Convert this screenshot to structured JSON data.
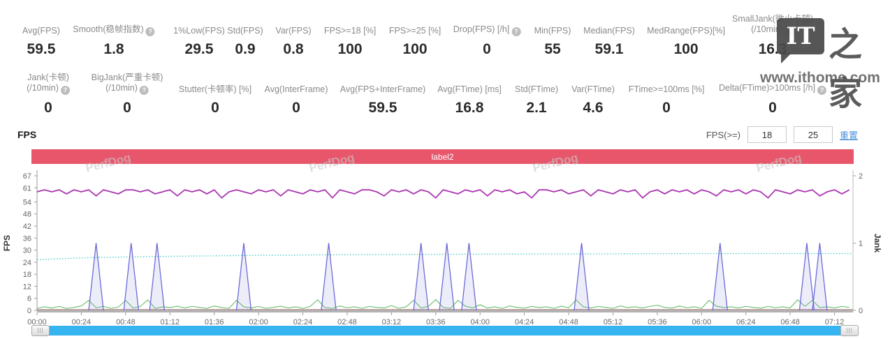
{
  "watermark": {
    "brand_text": "PerfDog",
    "site_text": "www.ithome.com",
    "logo_it": "IT",
    "logo_cn": "之家"
  },
  "stats_row1": [
    {
      "label": "Avg(FPS)",
      "value": "59.5",
      "help": false
    },
    {
      "label": "Smooth(稳帧指数)",
      "value": "1.8",
      "help": true
    },
    {
      "label": "1%Low(FPS)",
      "value": "29.5",
      "help": false
    },
    {
      "label": "Std(FPS)",
      "value": "0.9",
      "help": false
    },
    {
      "label": "Var(FPS)",
      "value": "0.8",
      "help": false
    },
    {
      "label": "FPS>=18 [%]",
      "value": "100",
      "help": false
    },
    {
      "label": "FPS>=25 [%]",
      "value": "100",
      "help": false
    },
    {
      "label": "Drop(FPS) [/h]",
      "value": "0",
      "help": true
    },
    {
      "label": "Min(FPS)",
      "value": "55",
      "help": false
    },
    {
      "label": "Median(FPS)",
      "value": "59.1",
      "help": false
    },
    {
      "label": "MedRange(FPS)[%]",
      "value": "100",
      "help": false
    },
    {
      "label": "SmallJank(微小卡顿)\n(/10min)",
      "value": "16.3",
      "help": true
    }
  ],
  "stats_row2": [
    {
      "label": "Jank(卡顿)\n(/10min)",
      "value": "0",
      "help": true
    },
    {
      "label": "BigJank(严重卡顿)\n(/10min)",
      "value": "0",
      "help": true
    },
    {
      "label": "Stutter(卡顿率) [%]",
      "value": "0",
      "help": false
    },
    {
      "label": "Avg(InterFrame)",
      "value": "0",
      "help": false
    },
    {
      "label": "Avg(FPS+InterFrame)",
      "value": "59.5",
      "help": false
    },
    {
      "label": "Avg(FTime) [ms]",
      "value": "16.8",
      "help": false
    },
    {
      "label": "Std(FTime)",
      "value": "2.1",
      "help": false
    },
    {
      "label": "Var(FTime)",
      "value": "4.6",
      "help": false
    },
    {
      "label": "FTime>=100ms [%]",
      "value": "0",
      "help": false
    },
    {
      "label": "Delta(FTime)>100ms [/h]",
      "value": "0",
      "help": true
    }
  ],
  "section": {
    "title": "FPS",
    "filter_label": "FPS(>=)",
    "filter_low": "18",
    "filter_high": "25",
    "reset_label": "重置"
  },
  "banner": {
    "text": "label2",
    "color": "#e8566b"
  },
  "colors": {
    "banner": "#e8566b",
    "link": "#4a90d9",
    "scrollbar": "#36b4f0",
    "fps_line": "#ab36b2",
    "avg_trend_line": "#41c7c3",
    "jank_spike_line": "#6b6bd8",
    "stutter_line": "#67bd69",
    "drop_line": "#e06666"
  },
  "chart_data": {
    "type": "line",
    "title": "label2",
    "x_axis": {
      "duration_s": 442,
      "tick_interval_s": 24,
      "ticks": [
        "00:00",
        "00:24",
        "00:48",
        "01:12",
        "01:36",
        "02:00",
        "02:24",
        "02:48",
        "03:12",
        "03:36",
        "04:00",
        "04:24",
        "04:48",
        "05:12",
        "05:36",
        "06:00",
        "06:24",
        "06:48",
        "07:12"
      ]
    },
    "y_left": {
      "label": "FPS",
      "min": 0,
      "max": 67,
      "ticks": [
        67,
        61,
        54,
        48,
        42,
        36,
        30,
        24,
        18,
        12,
        6,
        0
      ]
    },
    "y_right": {
      "label": "Jank",
      "min": 0,
      "max": 2,
      "ticks": [
        2,
        1,
        0
      ]
    },
    "legend": "off",
    "grid": "off",
    "series": [
      {
        "name": "Drop(FPS)",
        "axis": "left",
        "style": "dotted",
        "color": "#e06666",
        "width": 1.1,
        "points": [
          [
            0,
            0.4
          ],
          [
            442,
            0.4
          ]
        ]
      },
      {
        "name": "Stutter",
        "axis": "left",
        "style": "solid",
        "color": "#67bd69",
        "width": 1.1,
        "step_s": 4,
        "values": [
          1,
          1.8,
          1.2,
          2,
          1,
          1.5,
          2.2,
          5,
          1.3,
          2,
          1,
          1.6,
          5,
          1.2,
          2,
          5.2,
          1,
          1.8,
          1.4,
          2.1,
          1.2,
          2,
          1.5,
          1,
          2.2,
          1.4,
          1,
          5,
          1.8,
          1.2,
          2,
          1,
          1.5,
          2.1,
          1.2,
          1.8,
          1,
          2,
          5.3,
          1.4,
          1,
          2.2,
          1.3,
          1.8,
          1,
          2,
          1.5,
          1.2,
          2.4,
          1,
          1.8,
          5.1,
          1.2,
          2,
          5.4,
          1.5,
          1,
          5,
          2.1,
          1.3,
          2.8,
          1.2,
          1.8,
          1,
          2.2,
          1.5,
          1.1,
          2,
          1.4,
          1.8,
          1,
          2.1,
          1.3,
          5.2,
          1.8,
          1.2,
          2,
          1.5,
          1,
          2.2,
          1.4,
          1.8,
          1.2,
          2,
          2.6,
          1.5,
          1.1,
          2.2,
          1.3,
          1.8,
          1,
          5,
          2.1,
          1.4,
          1.8,
          1.2,
          2,
          1.5,
          1.1,
          2,
          1.3,
          1.8,
          1.2,
          5.3,
          2,
          5,
          1.4,
          1.8,
          1.2,
          2,
          1.5
        ]
      },
      {
        "name": "Avg trend",
        "axis": "left",
        "style": "dotted",
        "color": "#41c7c3",
        "width": 1.3,
        "points": [
          [
            0,
            25.3
          ],
          [
            30,
            26.3
          ],
          [
            60,
            26.8
          ],
          [
            90,
            27.1
          ],
          [
            120,
            27.4
          ],
          [
            150,
            27.6
          ],
          [
            180,
            27.8
          ],
          [
            210,
            27.9
          ],
          [
            270,
            28.1
          ],
          [
            330,
            28.2
          ],
          [
            390,
            28.3
          ],
          [
            442,
            28.3
          ]
        ]
      },
      {
        "name": "Jank events",
        "axis": "right",
        "style": "spike",
        "color": "#6b6bd8",
        "width": 1.3,
        "spike_value": 1,
        "spike_half_width_s": 4,
        "spike_times_s": [
          32,
          51,
          65,
          112,
          158,
          208,
          222,
          234,
          295,
          370,
          417,
          424
        ]
      },
      {
        "name": "FPS",
        "axis": "left",
        "style": "solid",
        "color": "#ab36b2",
        "width": 1.8,
        "step_s": 4,
        "values": [
          59,
          60,
          59,
          60,
          58,
          60,
          59,
          60,
          57,
          60,
          59,
          58,
          60,
          60,
          59,
          60,
          58,
          59,
          60,
          57,
          60,
          59,
          60,
          58,
          60,
          56,
          59,
          60,
          59,
          58,
          60,
          59,
          60,
          57,
          60,
          59,
          58,
          60,
          59,
          60,
          56,
          60,
          59,
          58,
          60,
          60,
          59,
          57,
          60,
          59,
          60,
          58,
          60,
          59,
          56,
          60,
          59,
          58,
          60,
          59,
          60,
          57,
          60,
          59,
          60,
          58,
          59,
          56,
          60,
          60,
          59,
          60,
          58,
          59,
          60,
          57,
          60,
          59,
          58,
          60,
          59,
          60,
          56,
          59,
          60,
          58,
          60,
          59,
          60,
          58,
          60,
          59,
          57,
          60,
          59,
          60,
          58,
          60,
          59,
          56,
          60,
          59,
          58,
          60,
          59,
          60,
          57,
          59,
          60,
          58,
          60
        ]
      }
    ]
  }
}
